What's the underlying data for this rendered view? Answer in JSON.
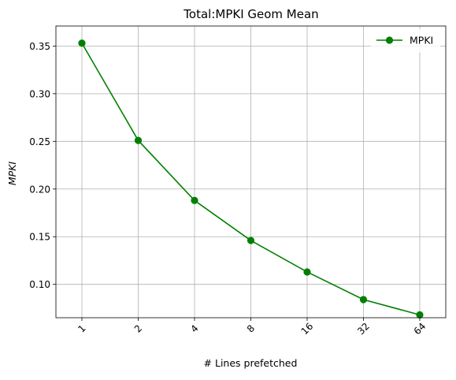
{
  "chart_data": {
    "type": "line",
    "title": "Total:MPKI Geom Mean",
    "xlabel": "# Lines prefetched",
    "ylabel": "MPKI",
    "categories": [
      "1",
      "2",
      "4",
      "8",
      "16",
      "32",
      "64"
    ],
    "series": [
      {
        "name": "MPKI",
        "color": "#008000",
        "marker": "circle",
        "values": [
          0.353,
          0.251,
          0.188,
          0.146,
          0.113,
          0.084,
          0.068
        ]
      }
    ],
    "yticks": [
      0.1,
      0.15,
      0.2,
      0.25,
      0.3,
      0.35
    ],
    "ytick_labels": [
      "0.10",
      "0.15",
      "0.20",
      "0.25",
      "0.30",
      "0.35"
    ],
    "ylim": [
      0.065,
      0.371
    ],
    "grid": true,
    "legend_position": "top-right"
  }
}
